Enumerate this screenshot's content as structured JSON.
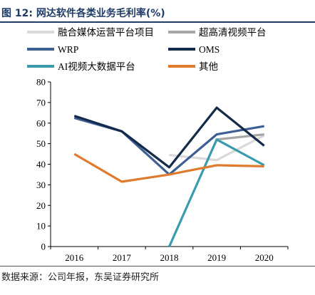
{
  "figure": {
    "title": "图 12:  网达软件各类业务毛利率(%)",
    "source": "数据来源：公司年报，东吴证券研究所"
  },
  "chart_data": {
    "type": "line",
    "categories": [
      "2016",
      "2017",
      "2018",
      "2019",
      "2020"
    ],
    "ylim": [
      0,
      80
    ],
    "yticks": [
      0,
      10,
      20,
      30,
      40,
      50,
      60,
      70,
      80
    ],
    "grid": false,
    "legend_position": "top",
    "series": [
      {
        "name": "融合媒体运营平台项目",
        "color": "#d9d9d9",
        "values": [
          null,
          null,
          44.5,
          42.0,
          54.0
        ]
      },
      {
        "name": "超高清视频平台",
        "color": "#a6a6a6",
        "values": [
          null,
          null,
          null,
          52.0,
          54.5
        ]
      },
      {
        "name": "WRP",
        "color": "#3e5f93",
        "values": [
          62.5,
          56.0,
          35.0,
          54.5,
          58.5
        ]
      },
      {
        "name": "OMS",
        "color": "#132a4a",
        "values": [
          63.5,
          56.0,
          38.5,
          67.5,
          49.0
        ]
      },
      {
        "name": "AI视频大数据平台",
        "color": "#3a9bae",
        "values": [
          null,
          null,
          0,
          52.0,
          39.5
        ]
      },
      {
        "name": "其他",
        "color": "#e07b2e",
        "values": [
          45.0,
          31.5,
          35.0,
          39.5,
          39.0
        ]
      }
    ]
  }
}
